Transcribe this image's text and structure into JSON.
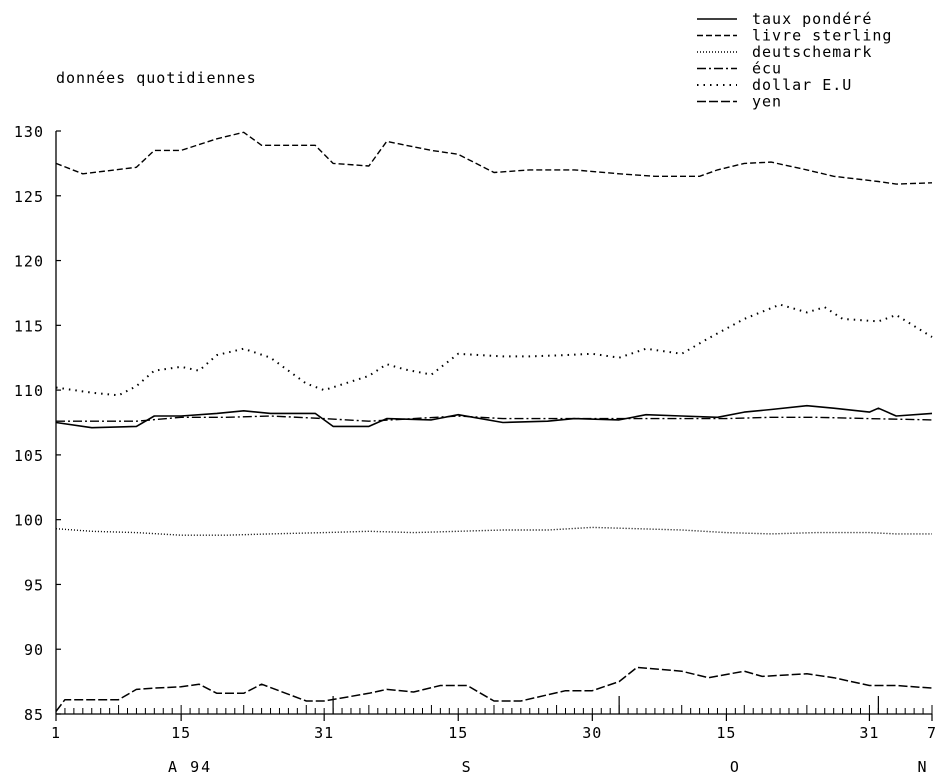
{
  "subtitle": "données quotidiennes",
  "legend": [
    {
      "label": "taux pondéré",
      "style": "solid"
    },
    {
      "label": "livre sterling",
      "style": "dashed"
    },
    {
      "label": "deutschemark",
      "style": "dotted"
    },
    {
      "label": "écu",
      "style": "dashdot"
    },
    {
      "label": "dollar E.U",
      "style": "sparse-dot"
    },
    {
      "label": "yen",
      "style": "long-dash"
    }
  ],
  "chart_data": {
    "type": "line",
    "subtitle": "données quotidiennes",
    "ylim": [
      85,
      130
    ],
    "yticks": [
      85,
      90,
      95,
      100,
      105,
      110,
      115,
      120,
      125,
      130
    ],
    "x_start": "1994-08-01",
    "x_end": "1994-11-07",
    "xtick_labels": [
      "1",
      "15",
      "31",
      "15",
      "30",
      "15",
      "31",
      "7"
    ],
    "month_labels": [
      "A 94",
      "S",
      "O",
      "N"
    ],
    "grid": false,
    "legend_position": "top-right",
    "series": [
      {
        "name": "taux pondéré",
        "style": "solid",
        "dates": [
          "1994-08-01",
          "1994-08-05",
          "1994-08-10",
          "1994-08-12",
          "1994-08-15",
          "1994-08-19",
          "1994-08-22",
          "1994-08-25",
          "1994-08-30",
          "1994-09-01",
          "1994-09-05",
          "1994-09-07",
          "1994-09-12",
          "1994-09-15",
          "1994-09-20",
          "1994-09-25",
          "1994-09-28",
          "1994-10-03",
          "1994-10-06",
          "1994-10-10",
          "1994-10-14",
          "1994-10-17",
          "1994-10-20",
          "1994-10-24",
          "1994-10-27",
          "1994-10-31",
          "1994-11-01",
          "1994-11-03",
          "1994-11-07"
        ],
        "values": [
          107.5,
          107.1,
          107.2,
          108.0,
          108.0,
          108.2,
          108.4,
          108.2,
          108.2,
          107.2,
          107.2,
          107.8,
          107.7,
          108.1,
          107.5,
          107.6,
          107.8,
          107.7,
          108.1,
          108.0,
          107.9,
          108.3,
          108.5,
          108.8,
          108.6,
          108.3,
          108.6,
          108.0,
          108.2
        ]
      },
      {
        "name": "livre sterling",
        "style": "dashed",
        "dates": [
          "1994-08-01",
          "1994-08-04",
          "1994-08-10",
          "1994-08-12",
          "1994-08-15",
          "1994-08-19",
          "1994-08-22",
          "1994-08-24",
          "1994-08-30",
          "1994-09-01",
          "1994-09-05",
          "1994-09-07",
          "1994-09-12",
          "1994-09-15",
          "1994-09-19",
          "1994-09-23",
          "1994-09-28",
          "1994-10-03",
          "1994-10-07",
          "1994-10-12",
          "1994-10-14",
          "1994-10-17",
          "1994-10-20",
          "1994-10-24",
          "1994-10-27",
          "1994-11-01",
          "1994-11-03",
          "1994-11-07"
        ],
        "values": [
          127.5,
          126.7,
          127.2,
          128.5,
          128.5,
          129.4,
          129.9,
          128.9,
          128.9,
          127.5,
          127.3,
          129.2,
          128.5,
          128.2,
          126.8,
          127.0,
          127.0,
          126.7,
          126.5,
          126.5,
          127.0,
          127.5,
          127.6,
          127.0,
          126.5,
          126.1,
          125.9,
          126.0
        ]
      },
      {
        "name": "deutschemark",
        "style": "dotted",
        "dates": [
          "1994-08-01",
          "1994-08-05",
          "1994-08-10",
          "1994-08-15",
          "1994-08-20",
          "1994-08-25",
          "1994-08-31",
          "1994-09-05",
          "1994-09-10",
          "1994-09-15",
          "1994-09-20",
          "1994-09-25",
          "1994-09-30",
          "1994-10-05",
          "1994-10-10",
          "1994-10-15",
          "1994-10-20",
          "1994-10-25",
          "1994-10-31",
          "1994-11-03",
          "1994-11-07"
        ],
        "values": [
          99.3,
          99.1,
          99.0,
          98.8,
          98.8,
          98.9,
          99.0,
          99.1,
          99.0,
          99.1,
          99.2,
          99.2,
          99.4,
          99.3,
          99.2,
          99.0,
          98.9,
          99.0,
          99.0,
          98.9,
          98.9
        ]
      },
      {
        "name": "écu",
        "style": "dashdot",
        "dates": [
          "1994-08-01",
          "1994-08-10",
          "1994-08-15",
          "1994-08-20",
          "1994-08-25",
          "1994-08-31",
          "1994-09-05",
          "1994-09-10",
          "1994-09-15",
          "1994-09-20",
          "1994-09-25",
          "1994-09-30",
          "1994-10-05",
          "1994-10-10",
          "1994-10-15",
          "1994-10-20",
          "1994-10-25",
          "1994-10-31",
          "1994-11-07"
        ],
        "values": [
          107.6,
          107.6,
          107.9,
          107.9,
          108.0,
          107.8,
          107.6,
          107.8,
          108.0,
          107.8,
          107.8,
          107.8,
          107.8,
          107.8,
          107.8,
          107.9,
          107.9,
          107.8,
          107.7
        ]
      },
      {
        "name": "dollar E.U",
        "style": "sparse-dot",
        "dates": [
          "1994-08-01",
          "1994-08-05",
          "1994-08-08",
          "1994-08-10",
          "1994-08-12",
          "1994-08-15",
          "1994-08-17",
          "1994-08-19",
          "1994-08-22",
          "1994-08-25",
          "1994-08-29",
          "1994-08-31",
          "1994-09-05",
          "1994-09-07",
          "1994-09-09",
          "1994-09-12",
          "1994-09-15",
          "1994-09-20",
          "1994-09-23",
          "1994-09-27",
          "1994-09-30",
          "1994-10-03",
          "1994-10-06",
          "1994-10-10",
          "1994-10-13",
          "1994-10-17",
          "1994-10-21",
          "1994-10-24",
          "1994-10-26",
          "1994-10-28",
          "1994-11-01",
          "1994-11-03",
          "1994-11-07"
        ],
        "values": [
          110.2,
          109.8,
          109.6,
          110.3,
          111.5,
          111.8,
          111.5,
          112.7,
          113.2,
          112.5,
          110.5,
          110.0,
          111.1,
          112.0,
          111.6,
          111.2,
          112.8,
          112.6,
          112.6,
          112.7,
          112.8,
          112.5,
          113.2,
          112.8,
          114.0,
          115.5,
          116.6,
          116.0,
          116.4,
          115.5,
          115.3,
          115.8,
          114.1
        ]
      },
      {
        "name": "yen",
        "style": "long-dash",
        "dates": [
          "1994-08-01",
          "1994-08-02",
          "1994-08-04",
          "1994-08-08",
          "1994-08-10",
          "1994-08-12",
          "1994-08-15",
          "1994-08-17",
          "1994-08-19",
          "1994-08-22",
          "1994-08-24",
          "1994-08-29",
          "1994-08-31",
          "1994-09-05",
          "1994-09-07",
          "1994-09-10",
          "1994-09-13",
          "1994-09-16",
          "1994-09-19",
          "1994-09-22",
          "1994-09-27",
          "1994-09-30",
          "1994-10-03",
          "1994-10-05",
          "1994-10-10",
          "1994-10-13",
          "1994-10-17",
          "1994-10-19",
          "1994-10-24",
          "1994-10-27",
          "1994-10-31",
          "1994-11-03",
          "1994-11-07"
        ],
        "values": [
          85.2,
          86.1,
          86.1,
          86.1,
          86.9,
          87.0,
          87.1,
          87.3,
          86.6,
          86.6,
          87.3,
          86.0,
          86.0,
          86.6,
          86.9,
          86.7,
          87.2,
          87.2,
          86.0,
          86.0,
          86.8,
          86.8,
          87.5,
          88.6,
          88.3,
          87.8,
          88.3,
          87.9,
          88.1,
          87.8,
          87.2,
          87.2,
          87.0
        ]
      }
    ]
  }
}
